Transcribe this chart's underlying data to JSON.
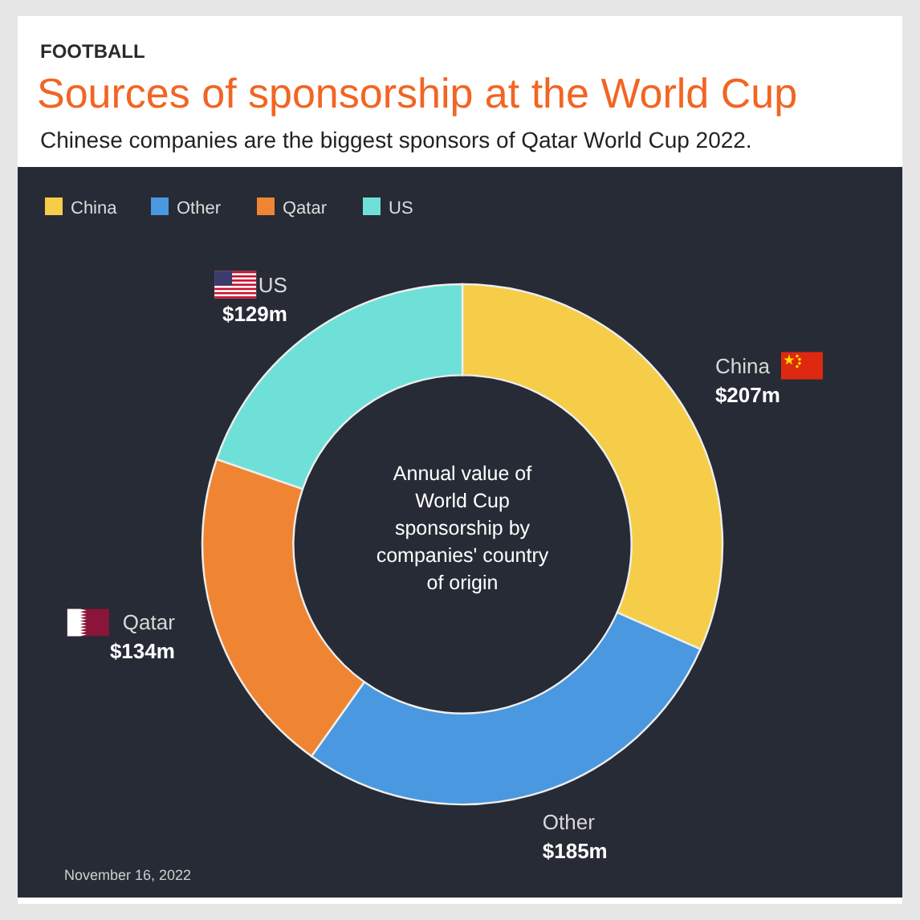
{
  "chart_data": {
    "type": "donut",
    "title": "Sources of sponsorship at the World Cup",
    "subtitle": "Chinese companies are the biggest sponsors of Qatar World Cup 2022.",
    "categories": [
      "China",
      "Other",
      "Qatar",
      "US"
    ],
    "values": [
      207,
      185,
      134,
      129
    ],
    "colors": [
      "#f5cd48",
      "#4a98df",
      "#ef8533",
      "#6fe0d7"
    ],
    "value_labels": [
      "$207m",
      "$185m",
      "$134m",
      "$129m"
    ],
    "legend": "top left",
    "annotations": [
      "FOOTBALL",
      "Annual value of World Cup sponsorship by companies' country of origin",
      "November 16, 2022"
    ]
  }
}
